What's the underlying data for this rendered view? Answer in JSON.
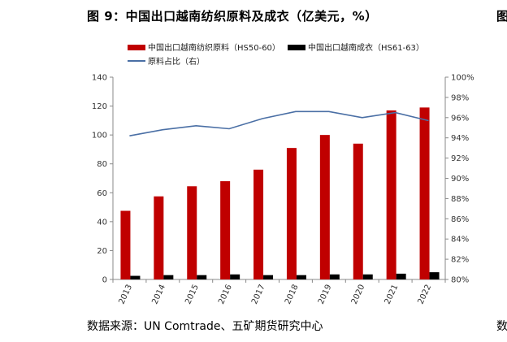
{
  "title": "图 9：中国出口越南纺织原料及成衣（亿美元，%）",
  "source": "数据来源：UN Comtrade、五矿期货研究中心",
  "edge_chars": {
    "top": "图",
    "bottom": "数"
  },
  "colors": {
    "bar_main": "#c00000",
    "bar_secondary": "#000000",
    "line": "#4a6fa5"
  },
  "chart_data": {
    "type": "bar",
    "title": "中国出口越南纺织原料及成衣（亿美元，%）",
    "categories": [
      "2013",
      "2014",
      "2015",
      "2016",
      "2017",
      "2018",
      "2019",
      "2020",
      "2021",
      "2022"
    ],
    "series": [
      {
        "name": "中国出口越南纺织原料（HS50-60）",
        "type": "bar",
        "axis": "left",
        "values": [
          47.5,
          57.5,
          64.5,
          68,
          76,
          91,
          100,
          94,
          117,
          119
        ]
      },
      {
        "name": "中国出口越南成衣（HS61-63）",
        "type": "bar",
        "axis": "left",
        "values": [
          2.5,
          3,
          3,
          3.5,
          3,
          3,
          3.5,
          3.5,
          4,
          5
        ]
      },
      {
        "name": "原料占比（右）",
        "type": "line",
        "axis": "right",
        "values": [
          94.2,
          94.8,
          95.2,
          94.9,
          95.9,
          96.6,
          96.6,
          96.0,
          96.5,
          95.7
        ]
      }
    ],
    "y_left": {
      "min": 0,
      "max": 140,
      "ticks": [
        0,
        20,
        40,
        60,
        80,
        100,
        120,
        140
      ]
    },
    "y_right": {
      "min": 80,
      "max": 100,
      "ticks": [
        "80%",
        "82%",
        "84%",
        "86%",
        "88%",
        "90%",
        "92%",
        "94%",
        "96%",
        "98%",
        "100%"
      ]
    },
    "legend_position": "top-left",
    "grid": false
  }
}
